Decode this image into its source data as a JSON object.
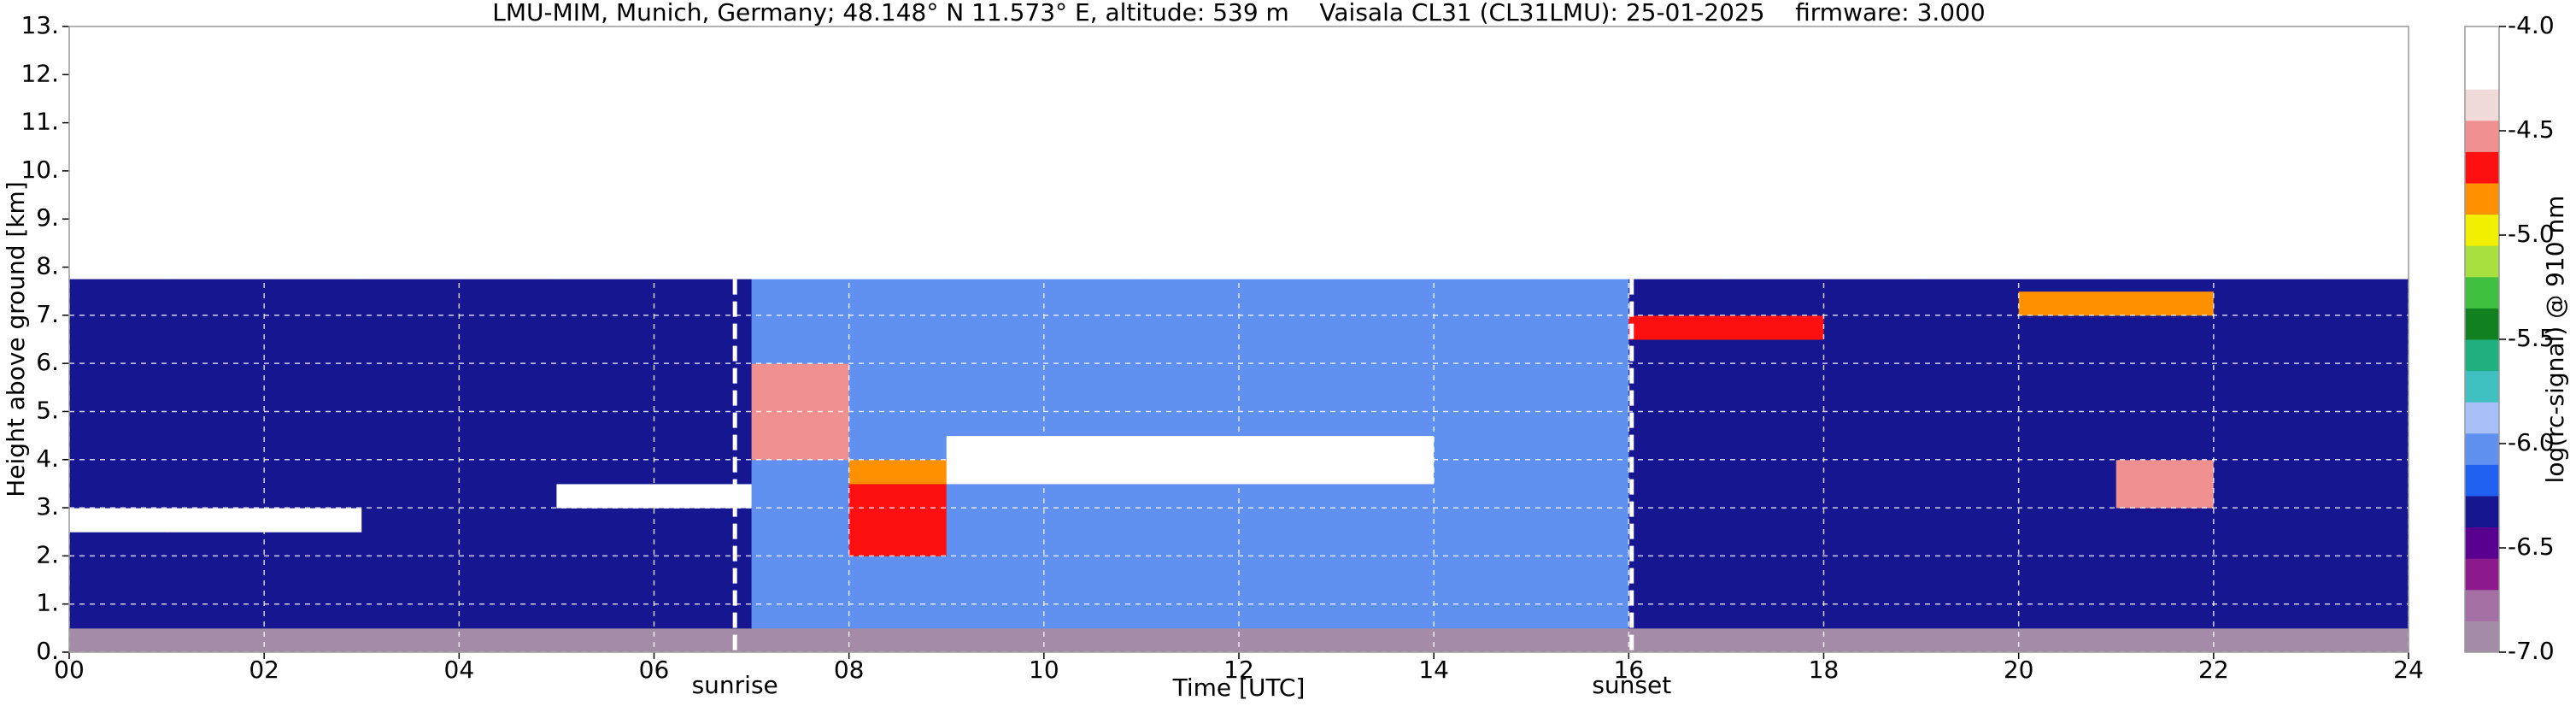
{
  "chart_data": {
    "type": "heatmap",
    "title": "LMU-MIM, Munich, Germany; 48.148° N 11.573° E, altitude: 539 m    Vaisala CL31 (CL31LMU): 25-01-2025    firmware: 3.000",
    "x_label": "Time [UTC]",
    "y_label": "Height above ground [km]",
    "xlim": [
      0,
      24
    ],
    "xticks": [
      {
        "value": 0,
        "label": "00"
      },
      {
        "value": 2,
        "label": "02"
      },
      {
        "value": 4,
        "label": "04"
      },
      {
        "value": 6,
        "label": "06"
      },
      {
        "value": 8,
        "label": "08"
      },
      10,
      12,
      14,
      16,
      18,
      20,
      22,
      24
    ],
    "ylim": [
      0,
      13
    ],
    "yticks": [
      {
        "value": 0,
        "label": "0."
      },
      {
        "value": 1,
        "label": "1."
      },
      {
        "value": 2,
        "label": "2."
      },
      {
        "value": 3,
        "label": "3."
      },
      {
        "value": 4,
        "label": "4."
      },
      {
        "value": 5,
        "label": "5."
      },
      {
        "value": 6,
        "label": "6."
      },
      {
        "value": 7,
        "label": "7."
      },
      {
        "value": 8,
        "label": "8."
      },
      {
        "value": 9,
        "label": "9."
      },
      {
        "value": 10,
        "label": "10."
      },
      {
        "value": 11,
        "label": "11."
      },
      {
        "value": 12,
        "label": "12."
      },
      {
        "value": 13,
        "label": "13."
      }
    ],
    "grid": true,
    "xbins": [
      0,
      1,
      2,
      3,
      4,
      5,
      6,
      7,
      8,
      9,
      10,
      11,
      12,
      13,
      14,
      15,
      16,
      17,
      18,
      19,
      20,
      21,
      22,
      23,
      24
    ],
    "ybins": [
      0,
      0.5,
      1,
      1.5,
      2,
      2.5,
      3,
      3.5,
      4,
      4.5,
      5,
      5.5,
      6,
      6.5,
      7,
      7.5,
      7.75
    ],
    "values": [
      [
        -6.9,
        -6.9,
        -6.9,
        -6.9,
        -6.9,
        -6.9,
        -6.9,
        -6.9,
        -6.9,
        -6.9,
        -6.9,
        -6.9,
        -6.9,
        -6.9,
        -6.9,
        -6.9,
        -6.9,
        -6.9,
        -6.9,
        -6.9,
        -6.9,
        -6.9,
        -6.9,
        -6.9
      ],
      [
        -6.3,
        -6.3,
        -6.3,
        -6.3,
        -6.3,
        -6.3,
        -6.3,
        -6.1,
        -6.1,
        -6.1,
        -6.1,
        -6.1,
        -6.1,
        -6.1,
        -6.1,
        -6.1,
        -6.3,
        -6.3,
        -6.3,
        -6.3,
        -6.3,
        -6.3,
        -6.3,
        -6.3
      ],
      [
        -6.3,
        -6.3,
        -6.3,
        -6.3,
        -6.3,
        -6.3,
        -6.3,
        -6.1,
        -6.1,
        -6.1,
        -6.1,
        -6.1,
        -6.1,
        -6.1,
        -6.1,
        -6.1,
        -6.3,
        -6.3,
        -6.3,
        -6.3,
        -6.3,
        -6.3,
        -6.3,
        -6.3
      ],
      [
        -6.3,
        -6.3,
        -6.3,
        -6.3,
        -6.3,
        -6.3,
        -6.3,
        -6.1,
        -6.1,
        -6.1,
        -6.1,
        -6.1,
        -6.1,
        -6.1,
        -6.1,
        -6.1,
        -6.3,
        -6.3,
        -6.3,
        -6.3,
        -6.3,
        -6.3,
        -6.3,
        -6.3
      ],
      [
        -6.3,
        -6.3,
        -6.3,
        -6.3,
        -6.3,
        -6.3,
        -6.3,
        -6.1,
        -4.7,
        -6.1,
        -6.1,
        -6.1,
        -6.1,
        -6.1,
        -6.1,
        -6.1,
        -6.3,
        -6.3,
        -6.3,
        -6.3,
        -6.3,
        -6.3,
        -6.3,
        -6.3
      ],
      [
        -4.1,
        -4.1,
        -4.1,
        -6.3,
        -6.3,
        -6.3,
        -6.3,
        -6.1,
        -4.7,
        -6.1,
        -6.1,
        -6.1,
        -6.1,
        -6.1,
        -6.1,
        -6.1,
        -6.3,
        -6.3,
        -6.3,
        -6.3,
        -6.3,
        -6.3,
        -6.3,
        -6.3
      ],
      [
        -6.3,
        -6.3,
        -6.3,
        -6.3,
        -6.3,
        -4.1,
        -4.1,
        -6.1,
        -4.7,
        -6.1,
        -6.1,
        -6.1,
        -6.1,
        -6.1,
        -6.1,
        -6.1,
        -6.3,
        -6.3,
        -6.3,
        -6.3,
        -6.3,
        -4.5,
        -6.3,
        -6.3
      ],
      [
        -6.3,
        -6.3,
        -6.3,
        -6.3,
        -6.3,
        -6.3,
        -6.3,
        -6.1,
        -4.8,
        -4.1,
        -4.1,
        -4.1,
        -4.1,
        -4.1,
        -6.1,
        -6.1,
        -6.3,
        -6.3,
        -6.3,
        -6.3,
        -6.3,
        -4.5,
        -6.3,
        -6.3
      ],
      [
        -6.3,
        -6.3,
        -6.3,
        -6.3,
        -6.3,
        -6.3,
        -6.3,
        -4.5,
        -6.1,
        -4.1,
        -4.1,
        -4.1,
        -4.1,
        -4.1,
        -6.1,
        -6.1,
        -6.3,
        -6.3,
        -6.3,
        -6.3,
        -6.3,
        -6.3,
        -6.3,
        -6.3
      ],
      [
        -6.3,
        -6.3,
        -6.3,
        -6.3,
        -6.3,
        -6.3,
        -6.3,
        -4.5,
        -6.1,
        -6.1,
        -6.1,
        -6.1,
        -6.1,
        -6.1,
        -6.1,
        -6.1,
        -6.3,
        -6.3,
        -6.3,
        -6.3,
        -6.3,
        -6.3,
        -6.3,
        -6.3
      ],
      [
        -6.3,
        -6.3,
        -6.3,
        -6.3,
        -6.3,
        -6.3,
        -6.3,
        -4.5,
        -6.1,
        -6.1,
        -6.1,
        -6.1,
        -6.1,
        -6.1,
        -6.1,
        -6.1,
        -6.3,
        -6.3,
        -6.3,
        -6.3,
        -6.3,
        -6.3,
        -6.3,
        -6.3
      ],
      [
        -6.3,
        -6.3,
        -6.3,
        -6.3,
        -6.3,
        -6.3,
        -6.3,
        -4.5,
        -6.1,
        -6.1,
        -6.1,
        -6.1,
        -6.1,
        -6.1,
        -6.1,
        -6.1,
        -6.3,
        -6.3,
        -6.3,
        -6.3,
        -6.3,
        -6.3,
        -6.3,
        -6.3
      ],
      [
        -6.3,
        -6.3,
        -6.3,
        -6.3,
        -6.3,
        -6.3,
        -6.3,
        -6.1,
        -6.1,
        -6.1,
        -6.1,
        -6.1,
        -6.1,
        -6.1,
        -6.1,
        -6.1,
        -6.3,
        -6.3,
        -6.3,
        -6.3,
        -6.3,
        -6.3,
        -6.3,
        -6.3
      ],
      [
        -6.3,
        -6.3,
        -6.3,
        -6.3,
        -6.3,
        -6.3,
        -6.3,
        -6.1,
        -6.1,
        -6.1,
        -6.1,
        -6.1,
        -6.1,
        -6.1,
        -6.1,
        -6.1,
        -4.7,
        -4.7,
        -6.3,
        -6.3,
        -6.3,
        -6.3,
        -6.3,
        -6.3
      ],
      [
        -6.3,
        -6.3,
        -6.3,
        -6.3,
        -6.3,
        -6.3,
        -6.3,
        -6.1,
        -6.1,
        -6.1,
        -6.1,
        -6.1,
        -6.1,
        -6.1,
        -6.1,
        -6.1,
        -6.3,
        -6.3,
        -6.3,
        -6.3,
        -4.8,
        -4.8,
        -6.3,
        -6.3
      ],
      [
        -6.3,
        -6.3,
        -6.3,
        -6.3,
        -6.3,
        -6.3,
        -6.3,
        -6.1,
        -6.1,
        -6.1,
        -6.1,
        -6.1,
        -6.1,
        -6.1,
        -6.1,
        -6.1,
        -6.3,
        -6.3,
        -6.3,
        -6.3,
        -6.3,
        -6.3,
        -6.3,
        -6.3
      ]
    ],
    "annotations": [
      {
        "x": 6.83,
        "text": "sunrise"
      },
      {
        "x": 16.03,
        "text": "sunset"
      }
    ],
    "colorbar": {
      "label": "log(rc-signal) @ 910 nm",
      "lim": [
        -7,
        -4
      ],
      "ticks": [
        {
          "value": -4,
          "label": "-4.0"
        },
        -4.5,
        {
          "value": -5,
          "label": "-5.0"
        },
        -5.5,
        {
          "value": -6,
          "label": "-6.0"
        },
        -6.5,
        {
          "value": -7,
          "label": "-7.0"
        }
      ],
      "levels": [
        -7,
        -6.85,
        -6.7,
        -6.55,
        -6.4,
        -6.25,
        -6.1,
        -5.95,
        -5.8,
        -5.65,
        -5.5,
        -5.35,
        -5.2,
        -5.05,
        -4.9,
        -4.75,
        -4.6,
        -4.45,
        -4.3,
        -4.15,
        -4
      ],
      "colors": [
        "#a48ca8",
        "#a470a4",
        "#8c1a8c",
        "#5a0090",
        "#161690",
        "#2060f0",
        "#6090f0",
        "#a8c0f8",
        "#40c0c0",
        "#20b080",
        "#108020",
        "#40c040",
        "#a8e040",
        "#f0f000",
        "#ff9000",
        "#ff1010",
        "#f09090",
        "#f0dada",
        "#ffffff",
        "#ffffff"
      ]
    }
  }
}
